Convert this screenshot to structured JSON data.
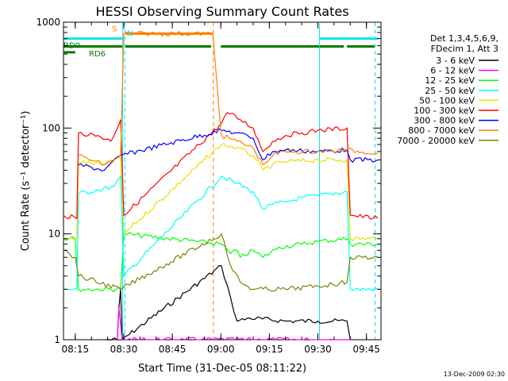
{
  "chart_data": {
    "type": "line",
    "title": "HESSI Observing Summary Count Rates",
    "xlabel": "Start Time (31-Dec-05 08:11:22)",
    "ylabel": "Count Rate (s⁻¹ detector⁻¹)",
    "footer_stamp": "13-Dec-2009 02:30",
    "y_scale": "log",
    "ylim": [
      1,
      1000
    ],
    "xlim": [
      "08:11:22",
      "09:49:30"
    ],
    "x_ticks": [
      "08:15",
      "08:30",
      "08:45",
      "09:00",
      "09:15",
      "09:30",
      "09:45"
    ],
    "y_ticks": [
      "1",
      "10",
      "100",
      "1000"
    ],
    "legend": {
      "placement": "right",
      "header": [
        "Det 1,3,4,5,6,9,",
        "FDecim 1, Att 3"
      ]
    },
    "flags": [
      {
        "label": "S",
        "color": "#ff8000",
        "intervals": [
          [
            "08:30:30",
            "08:57:30"
          ]
        ],
        "level": 780
      },
      {
        "label": "N",
        "color": "#00e5ee",
        "intervals": [
          [
            "08:11:22",
            "08:29:30"
          ],
          [
            "09:30:30",
            "09:48:30"
          ]
        ],
        "level": 700
      },
      {
        "label": "RD0",
        "color": "#007a00",
        "intervals": [
          [
            "08:11:22",
            "08:29:30"
          ],
          [
            "08:30:30",
            "08:57:00"
          ],
          [
            "09:00:00",
            "09:38:00"
          ],
          [
            "09:39:00",
            "09:47:30"
          ]
        ],
        "level": 590
      },
      {
        "label": "RD6",
        "color": "#007a00",
        "intervals": [
          [
            "08:11:22",
            "08:15:00"
          ]
        ],
        "level": 520
      }
    ],
    "vlines": [
      {
        "time": "08:30:20",
        "color": "#00e5ee",
        "style": "dashed"
      },
      {
        "time": "08:29:40",
        "color": "#00e5ee",
        "style": "solid"
      },
      {
        "time": "08:57:40",
        "color": "#ff8000",
        "style": "dashed"
      },
      {
        "time": "09:30:30",
        "color": "#00e5ee",
        "style": "solid"
      },
      {
        "time": "09:47:40",
        "color": "#00e5ee",
        "style": "dashed"
      }
    ],
    "series": [
      {
        "name": "3 - 6 keV",
        "color": "#000000",
        "points": [
          [
            "08:24:30",
            1
          ],
          [
            "08:28:00",
            1
          ],
          [
            "08:28:30",
            2
          ],
          [
            "08:29:00",
            3
          ],
          [
            "08:29:30",
            1
          ],
          [
            "09:00:10",
            5
          ],
          [
            "09:03:00",
            2.5
          ],
          [
            "09:05:00",
            1.5
          ],
          [
            "09:09:00",
            1.6
          ],
          [
            "09:20:00",
            1.5
          ],
          [
            "09:30:00",
            1.5
          ],
          [
            "09:39:00",
            1.5
          ],
          [
            "09:40:00",
            1
          ]
        ]
      },
      {
        "name": "6 - 12 keV",
        "color": "#ff00ff",
        "points": [
          [
            "08:28:00",
            1
          ],
          [
            "08:28:30",
            2
          ],
          [
            "08:29:30",
            1
          ],
          [
            "09:29:30",
            1
          ],
          [
            "09:40:00",
            1
          ]
        ]
      },
      {
        "name": "12 - 25 keV",
        "color": "#00ff00",
        "points": [
          [
            "08:11:22",
            9
          ],
          [
            "08:15:00",
            9
          ],
          [
            "08:16:00",
            3
          ],
          [
            "08:29:00",
            3
          ],
          [
            "08:30:00",
            10
          ],
          [
            "09:00:10",
            8
          ],
          [
            "09:03:00",
            6.5
          ],
          [
            "09:05:00",
            7
          ],
          [
            "09:06:00",
            6
          ],
          [
            "09:10:00",
            7
          ],
          [
            "09:13:00",
            6
          ],
          [
            "09:18:00",
            7.5
          ],
          [
            "09:25:00",
            8
          ],
          [
            "09:30:00",
            8.5
          ],
          [
            "09:39:30",
            9
          ],
          [
            "09:40:00",
            8
          ],
          [
            "09:48:30",
            8
          ]
        ]
      },
      {
        "name": "25 - 50 keV",
        "color": "#00ffff",
        "points": [
          [
            "08:11:22",
            3
          ],
          [
            "08:15:30",
            3
          ],
          [
            "08:16:00",
            24
          ],
          [
            "08:22:00",
            26
          ],
          [
            "08:27:00",
            28
          ],
          [
            "08:29:00",
            35
          ],
          [
            "08:30:00",
            4
          ],
          [
            "09:00:10",
            35
          ],
          [
            "09:05:00",
            30
          ],
          [
            "09:10:00",
            25
          ],
          [
            "09:13:00",
            17
          ],
          [
            "09:16:00",
            19
          ],
          [
            "09:20:00",
            20
          ],
          [
            "09:25:00",
            22
          ],
          [
            "09:30:00",
            23
          ],
          [
            "09:39:00",
            25
          ],
          [
            "09:40:00",
            3
          ],
          [
            "09:48:30",
            3
          ]
        ]
      },
      {
        "name": "50 - 100 keV",
        "color": "#e8e000",
        "points": [
          [
            "08:11:22",
            9
          ],
          [
            "08:15:30",
            9
          ],
          [
            "08:16:00",
            48
          ],
          [
            "08:24:00",
            45
          ],
          [
            "08:29:00",
            52
          ],
          [
            "08:30:00",
            10
          ],
          [
            "09:00:10",
            70
          ],
          [
            "09:05:00",
            65
          ],
          [
            "09:10:00",
            55
          ],
          [
            "09:13:00",
            40
          ],
          [
            "09:16:00",
            45
          ],
          [
            "09:20:00",
            48
          ],
          [
            "09:30:00",
            50
          ],
          [
            "09:39:00",
            50
          ],
          [
            "09:40:00",
            9
          ],
          [
            "09:48:30",
            9
          ]
        ]
      },
      {
        "name": "100 - 300 keV",
        "color": "#ff0000",
        "points": [
          [
            "08:11:22",
            15
          ],
          [
            "08:15:30",
            14
          ],
          [
            "08:16:00",
            90
          ],
          [
            "08:22:00",
            85
          ],
          [
            "08:26:00",
            75
          ],
          [
            "08:29:00",
            120
          ],
          [
            "08:30:00",
            15
          ],
          [
            "09:00:10",
            110
          ],
          [
            "09:02:00",
            140
          ],
          [
            "09:06:00",
            120
          ],
          [
            "09:10:00",
            100
          ],
          [
            "09:13:00",
            60
          ],
          [
            "09:16:00",
            75
          ],
          [
            "09:20:00",
            85
          ],
          [
            "09:25:00",
            90
          ],
          [
            "09:30:00",
            95
          ],
          [
            "09:39:00",
            100
          ],
          [
            "09:40:00",
            15
          ],
          [
            "09:48:30",
            14
          ]
        ]
      },
      {
        "name": "300 - 800 keV",
        "color": "#0000ff",
        "points": [
          [
            "08:16:00",
            45
          ],
          [
            "08:24:00",
            40
          ],
          [
            "08:29:00",
            55
          ],
          [
            "09:00:10",
            95
          ],
          [
            "09:05:00",
            90
          ],
          [
            "09:10:00",
            80
          ],
          [
            "09:13:00",
            50
          ],
          [
            "09:16:00",
            60
          ],
          [
            "09:20:00",
            62
          ],
          [
            "09:30:00",
            60
          ],
          [
            "09:39:00",
            62
          ],
          [
            "09:40:00",
            50
          ],
          [
            "09:48:30",
            50
          ]
        ]
      },
      {
        "name": "800 - 7000 keV",
        "color": "#ff8000",
        "points": [
          [
            "08:16:00",
            55
          ],
          [
            "08:24:00",
            45
          ],
          [
            "08:29:00",
            55
          ],
          [
            "08:30:00",
            780
          ],
          [
            "08:57:30",
            780
          ],
          [
            "09:00:10",
            85
          ],
          [
            "09:05:00",
            75
          ],
          [
            "09:10:00",
            65
          ],
          [
            "09:13:00",
            45
          ],
          [
            "09:16:00",
            55
          ],
          [
            "09:20:00",
            60
          ],
          [
            "09:30:00",
            60
          ],
          [
            "09:39:00",
            62
          ],
          [
            "09:48:30",
            58
          ]
        ]
      },
      {
        "name": "7000 - 20000 keV",
        "color": "#808000",
        "points": [
          [
            "08:11:22",
            7
          ],
          [
            "08:15:00",
            6
          ],
          [
            "08:16:00",
            4
          ],
          [
            "08:29:00",
            3
          ],
          [
            "09:00:10",
            10
          ],
          [
            "09:03:00",
            5
          ],
          [
            "09:06:00",
            3.5
          ],
          [
            "09:10:00",
            3
          ],
          [
            "09:20:00",
            3
          ],
          [
            "09:30:00",
            3.2
          ],
          [
            "09:39:00",
            3.5
          ],
          [
            "09:40:00",
            6
          ],
          [
            "09:48:30",
            6
          ]
        ]
      }
    ]
  }
}
